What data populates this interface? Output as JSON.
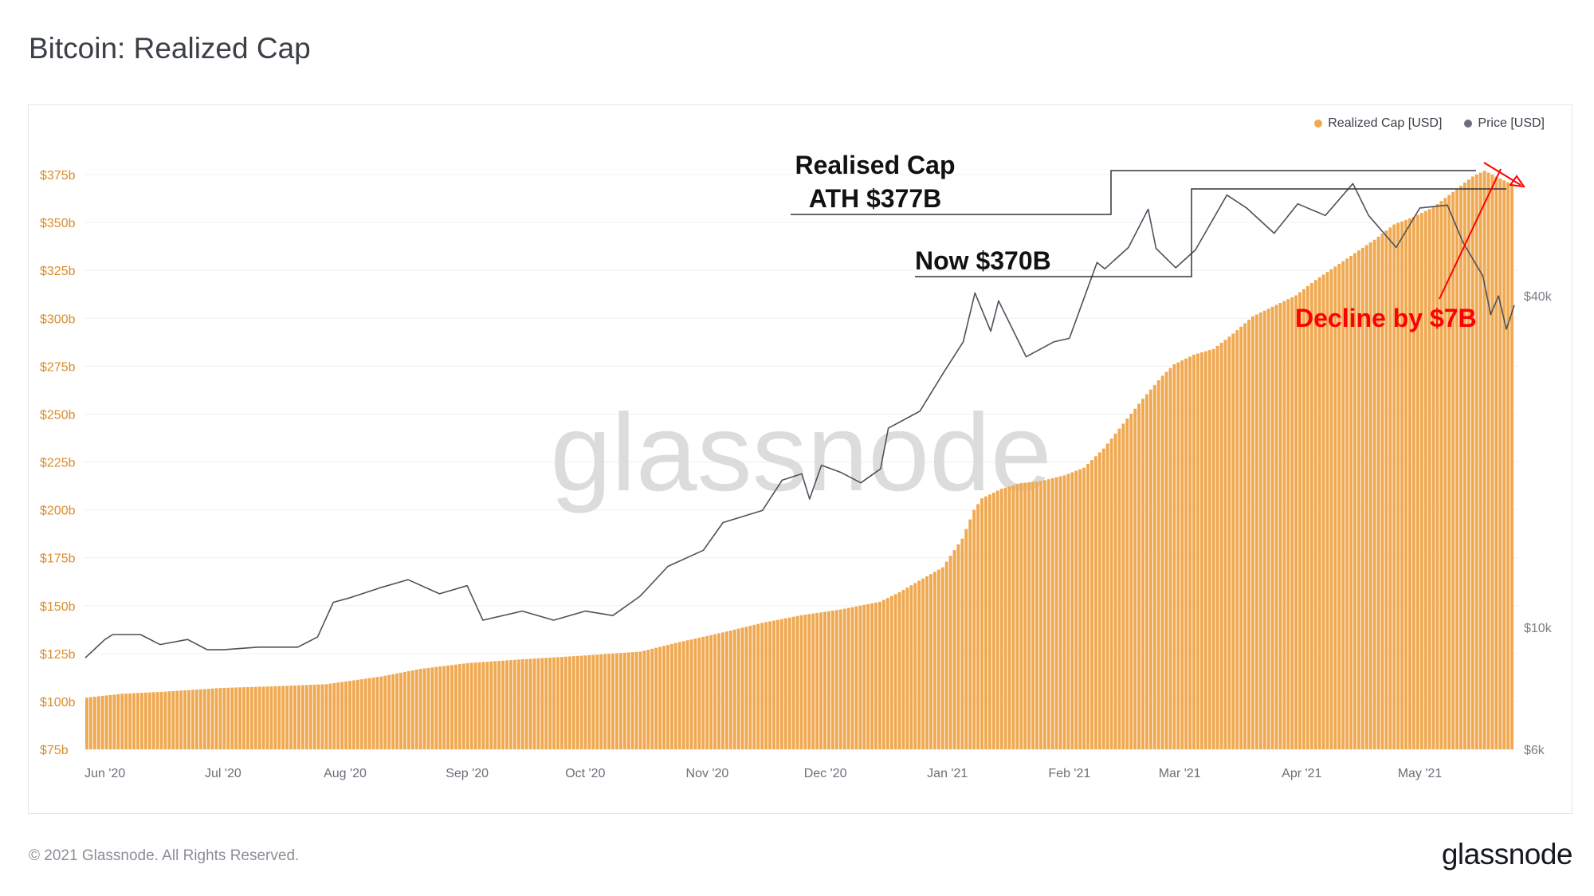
{
  "page": {
    "title": "Bitcoin: Realized Cap",
    "copyright": "© 2021 Glassnode. All Rights Reserved.",
    "brand": "glassnode",
    "watermark": "glassnode"
  },
  "colors": {
    "realized_cap": "#f0a951",
    "price": "#4d5159",
    "annotation_red": "#ff0000",
    "axis_left": "#d98d2b",
    "axis_right": "#7a7e86"
  },
  "legend": [
    {
      "name": "Realized Cap [USD]",
      "color": "#f0a951"
    },
    {
      "name": "Price [USD]",
      "color": "#6b6f77"
    }
  ],
  "annotations": {
    "ath_line1": "Realised Cap",
    "ath_line2": "ATH $377B",
    "now": "Now $370B",
    "decline": "Decline by $7B"
  },
  "chart_data": {
    "type": "bar",
    "title": "Bitcoin: Realized Cap",
    "x_labels": [
      "Jun '20",
      "Jul '20",
      "Aug '20",
      "Sep '20",
      "Oct '20",
      "Nov '20",
      "Dec '20",
      "Jan '21",
      "Feb '21",
      "Mar '21",
      "Apr '21",
      "May '21"
    ],
    "x_range": [
      "2020-05-27",
      "2021-05-25"
    ],
    "y_left": {
      "ticks": [
        "$75b",
        "$100b",
        "$125b",
        "$150b",
        "$175b",
        "$200b",
        "$225b",
        "$250b",
        "$275b",
        "$300b",
        "$325b",
        "$350b",
        "$375b"
      ],
      "range": [
        75,
        385
      ],
      "unit": "billion USD"
    },
    "y_right": {
      "ticks": [
        "$6k",
        "$10k",
        "$40k"
      ],
      "scale": "log",
      "range": [
        6000,
        72000
      ],
      "unit": "USD"
    },
    "grid": true,
    "legend_position": "top-right",
    "series": [
      {
        "name": "Realized Cap [USD]",
        "type": "bar",
        "axis": "left",
        "points": [
          [
            "2020-05-27",
            102
          ],
          [
            "2020-06-05",
            104
          ],
          [
            "2020-06-15",
            105
          ],
          [
            "2020-06-30",
            107
          ],
          [
            "2020-07-15",
            108
          ],
          [
            "2020-07-27",
            109
          ],
          [
            "2020-08-10",
            113
          ],
          [
            "2020-08-20",
            117
          ],
          [
            "2020-09-01",
            120
          ],
          [
            "2020-09-15",
            122
          ],
          [
            "2020-10-01",
            124
          ],
          [
            "2020-10-15",
            126
          ],
          [
            "2020-10-25",
            131
          ],
          [
            "2020-11-05",
            136
          ],
          [
            "2020-11-15",
            141
          ],
          [
            "2020-11-25",
            145
          ],
          [
            "2020-12-05",
            148
          ],
          [
            "2020-12-15",
            152
          ],
          [
            "2020-12-20",
            157
          ],
          [
            "2020-12-25",
            163
          ],
          [
            "2020-12-31",
            170
          ],
          [
            "2021-01-05",
            185
          ],
          [
            "2021-01-08",
            200
          ],
          [
            "2021-01-10",
            206
          ],
          [
            "2021-01-15",
            211
          ],
          [
            "2021-01-20",
            214
          ],
          [
            "2021-01-25",
            215
          ],
          [
            "2021-01-31",
            218
          ],
          [
            "2021-02-05",
            222
          ],
          [
            "2021-02-10",
            232
          ],
          [
            "2021-02-15",
            245
          ],
          [
            "2021-02-20",
            258
          ],
          [
            "2021-02-25",
            270
          ],
          [
            "2021-02-28",
            276
          ],
          [
            "2021-03-05",
            281
          ],
          [
            "2021-03-10",
            284
          ],
          [
            "2021-03-15",
            292
          ],
          [
            "2021-03-20",
            301
          ],
          [
            "2021-03-25",
            306
          ],
          [
            "2021-03-31",
            312
          ],
          [
            "2021-04-05",
            320
          ],
          [
            "2021-04-10",
            327
          ],
          [
            "2021-04-15",
            334
          ],
          [
            "2021-04-20",
            341
          ],
          [
            "2021-04-25",
            349
          ],
          [
            "2021-04-30",
            353
          ],
          [
            "2021-05-05",
            358
          ],
          [
            "2021-05-10",
            366
          ],
          [
            "2021-05-15",
            374
          ],
          [
            "2021-05-18",
            377
          ],
          [
            "2021-05-21",
            374
          ],
          [
            "2021-05-25",
            370
          ]
        ]
      },
      {
        "name": "Price [USD]",
        "type": "line",
        "axis": "right",
        "points": [
          [
            "2020-05-27",
            8800
          ],
          [
            "2020-06-01",
            9500
          ],
          [
            "2020-06-03",
            9700
          ],
          [
            "2020-06-10",
            9700
          ],
          [
            "2020-06-15",
            9300
          ],
          [
            "2020-06-22",
            9500
          ],
          [
            "2020-06-27",
            9100
          ],
          [
            "2020-07-01",
            9100
          ],
          [
            "2020-07-10",
            9200
          ],
          [
            "2020-07-20",
            9200
          ],
          [
            "2020-07-25",
            9600
          ],
          [
            "2020-07-29",
            11100
          ],
          [
            "2020-08-02",
            11300
          ],
          [
            "2020-08-10",
            11800
          ],
          [
            "2020-08-17",
            12200
          ],
          [
            "2020-08-25",
            11500
          ],
          [
            "2020-09-01",
            11900
          ],
          [
            "2020-09-05",
            10300
          ],
          [
            "2020-09-15",
            10700
          ],
          [
            "2020-09-23",
            10300
          ],
          [
            "2020-10-01",
            10700
          ],
          [
            "2020-10-08",
            10500
          ],
          [
            "2020-10-15",
            11400
          ],
          [
            "2020-10-22",
            12900
          ],
          [
            "2020-10-31",
            13800
          ],
          [
            "2020-11-05",
            15500
          ],
          [
            "2020-11-15",
            16300
          ],
          [
            "2020-11-20",
            18500
          ],
          [
            "2020-11-25",
            19000
          ],
          [
            "2020-11-27",
            17100
          ],
          [
            "2020-11-30",
            19700
          ],
          [
            "2020-12-05",
            19100
          ],
          [
            "2020-12-10",
            18300
          ],
          [
            "2020-12-15",
            19400
          ],
          [
            "2020-12-17",
            23000
          ],
          [
            "2020-12-25",
            24700
          ],
          [
            "2020-12-31",
            29000
          ],
          [
            "2021-01-05",
            33000
          ],
          [
            "2021-01-08",
            40500
          ],
          [
            "2021-01-12",
            34500
          ],
          [
            "2021-01-14",
            39200
          ],
          [
            "2021-01-21",
            31000
          ],
          [
            "2021-01-28",
            33000
          ],
          [
            "2021-02-01",
            33500
          ],
          [
            "2021-02-08",
            46000
          ],
          [
            "2021-02-10",
            44800
          ],
          [
            "2021-02-16",
            49000
          ],
          [
            "2021-02-21",
            57500
          ],
          [
            "2021-02-23",
            48800
          ],
          [
            "2021-02-28",
            45000
          ],
          [
            "2021-03-05",
            48500
          ],
          [
            "2021-03-13",
            61000
          ],
          [
            "2021-03-18",
            57800
          ],
          [
            "2021-03-25",
            52000
          ],
          [
            "2021-03-31",
            58800
          ],
          [
            "2021-04-07",
            56000
          ],
          [
            "2021-04-14",
            64000
          ],
          [
            "2021-04-18",
            56000
          ],
          [
            "2021-04-25",
            49000
          ],
          [
            "2021-05-01",
            57800
          ],
          [
            "2021-05-08",
            58500
          ],
          [
            "2021-05-12",
            50000
          ],
          [
            "2021-05-17",
            43500
          ],
          [
            "2021-05-19",
            37000
          ],
          [
            "2021-05-21",
            40000
          ],
          [
            "2021-05-23",
            34800
          ],
          [
            "2021-05-25",
            38500
          ]
        ]
      }
    ]
  }
}
